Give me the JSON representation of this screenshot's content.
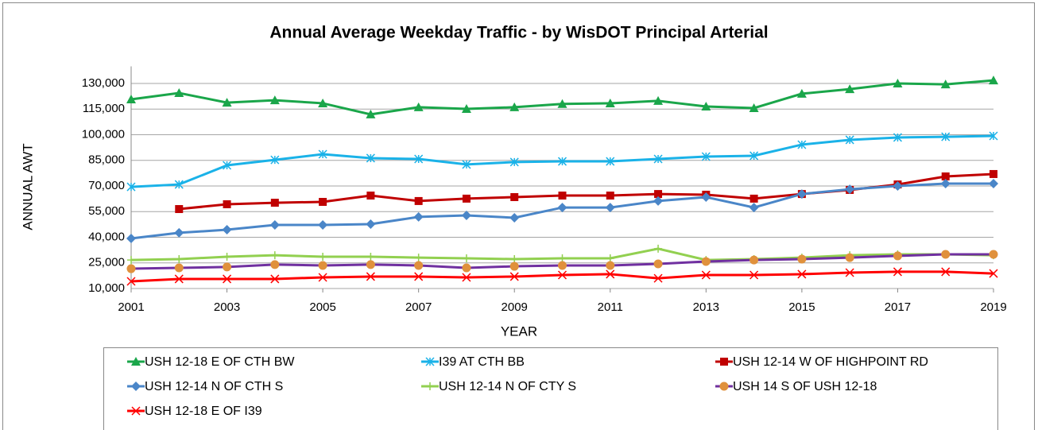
{
  "chart_data": {
    "type": "line",
    "title": "Annual Average Weekday Traffic - by WisDOT Principal Arterial",
    "xlabel": "YEAR",
    "ylabel": "ANNUAL AWT",
    "x": [
      2001,
      2002,
      2003,
      2004,
      2005,
      2006,
      2007,
      2008,
      2009,
      2010,
      2011,
      2012,
      2013,
      2014,
      2015,
      2016,
      2017,
      2018,
      2019
    ],
    "xlim": [
      2001,
      2019
    ],
    "xticks": [
      2001,
      2003,
      2005,
      2007,
      2009,
      2011,
      2013,
      2015,
      2017,
      2019
    ],
    "ylim": [
      10000,
      140000
    ],
    "yticks": [
      {
        "value": 10000,
        "label": "10,000"
      },
      {
        "value": 25000,
        "label": "25,000"
      },
      {
        "value": 40000,
        "label": "40,000"
      },
      {
        "value": 55000,
        "label": "55,000"
      },
      {
        "value": 70000,
        "label": "70,000"
      },
      {
        "value": 85000,
        "label": "85,000"
      },
      {
        "value": 100000,
        "label": "100,000"
      },
      {
        "value": 115000,
        "label": "115,000"
      },
      {
        "value": 130000,
        "label": "130,000"
      }
    ],
    "grid": true,
    "legend": "bottom",
    "series": [
      {
        "name": "USH 12-18 E OF CTH BW",
        "color": "#1aa64a",
        "marker": "triangle",
        "values": [
          120700,
          124400,
          118800,
          120200,
          118400,
          111900,
          116100,
          115100,
          116100,
          118000,
          118400,
          119800,
          116500,
          115600,
          124000,
          126700,
          130000,
          129500,
          131800
        ]
      },
      {
        "name": "I39 AT CTH BB",
        "color": "#1ab2e8",
        "marker": "asterisk",
        "values": [
          69500,
          70900,
          82100,
          85300,
          88600,
          86300,
          85800,
          82600,
          84000,
          84400,
          84400,
          85800,
          87200,
          87700,
          94200,
          97000,
          98400,
          98800,
          99300
        ]
      },
      {
        "name": "USH 12-14 W OF HIGHPOINT RD",
        "color": "#c00000",
        "marker": "square",
        "values": [
          null,
          56500,
          59300,
          60200,
          60700,
          64400,
          61200,
          62600,
          63500,
          64400,
          64400,
          65300,
          64900,
          62600,
          65300,
          67700,
          70900,
          75600,
          77000
        ]
      },
      {
        "name": "USH 12-14 N OF CTH S",
        "color": "#4a86c8",
        "marker": "diamond",
        "values": [
          39300,
          42600,
          44400,
          47200,
          47200,
          47700,
          51900,
          52800,
          51400,
          57400,
          57400,
          61200,
          63500,
          57400,
          65300,
          68100,
          70000,
          71400,
          71400
        ]
      },
      {
        "name": "USH 12-14 N OF CTY S",
        "color": "#92d050",
        "marker": "plus",
        "values": [
          26700,
          27200,
          28600,
          29500,
          28600,
          28600,
          28100,
          27700,
          27200,
          27700,
          27700,
          33300,
          26700,
          27200,
          28100,
          29500,
          30000,
          30000,
          29500
        ]
      },
      {
        "name": "USH 14 S OF USH 12-18",
        "color": "#7030a0",
        "marker": "circle",
        "marker_color": "#e0913c",
        "values": [
          21600,
          22100,
          22600,
          24000,
          23500,
          24000,
          23500,
          22100,
          23000,
          23500,
          23500,
          24400,
          25800,
          26700,
          27200,
          28100,
          29100,
          30000,
          30000
        ]
      },
      {
        "name": "USH 12-18 E OF I39",
        "color": "#ff0000",
        "marker": "x",
        "values": [
          14200,
          15600,
          15600,
          15600,
          16500,
          17000,
          17000,
          16500,
          17000,
          17900,
          18400,
          16000,
          17900,
          17900,
          18400,
          19300,
          19800,
          19800,
          18800
        ]
      }
    ]
  }
}
